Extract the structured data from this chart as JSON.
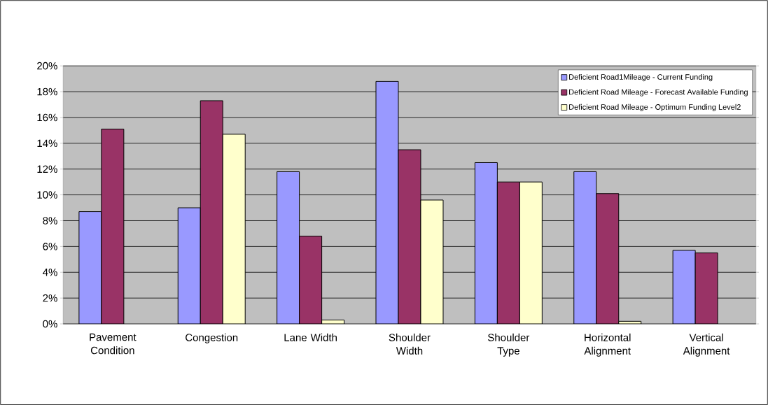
{
  "chart_data": {
    "type": "bar",
    "categories": [
      "Pavement Condition",
      "Congestion",
      "Lane Width",
      "Shoulder Width",
      "Shoulder Type",
      "Horizontal Alignment",
      "Vertical Alignment"
    ],
    "series": [
      {
        "name": "Deficient Road1Mileage - Current Funding",
        "color": "#9999ff",
        "values": [
          8.7,
          9.0,
          11.8,
          18.8,
          12.5,
          11.8,
          5.7
        ]
      },
      {
        "name": "Deficient Road Mileage - Forecast Available Funding",
        "color": "#993366",
        "values": [
          15.1,
          17.3,
          6.8,
          13.5,
          11.0,
          10.1,
          5.5
        ]
      },
      {
        "name": "Deficient Road Mileage - Optimum Funding Level2",
        "color": "#ffffcc",
        "values": [
          null,
          14.7,
          0.3,
          9.6,
          11.0,
          0.2,
          null
        ]
      }
    ],
    "ylim": [
      0,
      20
    ],
    "yticks": [
      {
        "value": 0,
        "label": "0%"
      },
      {
        "value": 2,
        "label": "2%"
      },
      {
        "value": 4,
        "label": "4%"
      },
      {
        "value": 6,
        "label": "6%"
      },
      {
        "value": 8,
        "label": "8%"
      },
      {
        "value": 10,
        "label": "10%"
      },
      {
        "value": 12,
        "label": "12%"
      },
      {
        "value": 14,
        "label": "14%"
      },
      {
        "value": 16,
        "label": "16%"
      },
      {
        "value": 18,
        "label": "18%"
      },
      {
        "value": 20,
        "label": "20%"
      }
    ],
    "grid": "y",
    "legend": "top right"
  }
}
